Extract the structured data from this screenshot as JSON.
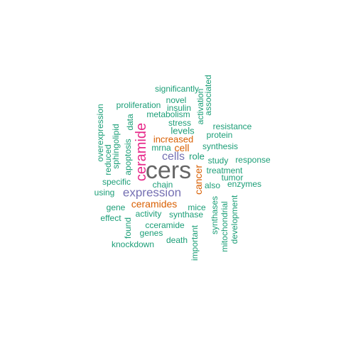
{
  "colors": {
    "green": "#1b9e77",
    "orange": "#d95f02",
    "purple": "#7570b3",
    "pink": "#e7298a",
    "gray": "#666666"
  },
  "words": {
    "cers": "cers",
    "ceramide": "ceramide",
    "expression": "expression",
    "cells": "cells",
    "ceramides": "ceramides",
    "cell": "cell",
    "increased": "increased",
    "cancer": "cancer",
    "levels": "levels",
    "significantly": "significantly",
    "associated": "associated",
    "novel": "novel",
    "insulin": "insulin",
    "activation": "activation",
    "proliferation": "proliferation",
    "metabolism": "metabolism",
    "stress": "stress",
    "resistance": "resistance",
    "protein": "protein",
    "overexpression": "overexpression",
    "sphingolipid": "sphingolipid",
    "data": "data",
    "reduced": "reduced",
    "apoptosis": "apoptosis",
    "mrna": "mrna",
    "synthesis": "synthesis",
    "role": "role",
    "study": "study",
    "response": "response",
    "treatment": "treatment",
    "tumor": "tumor",
    "specific": "specific",
    "chain": "chain",
    "also": "also",
    "enzymes": "enzymes",
    "using": "using",
    "gene": "gene",
    "mice": "mice",
    "synthases": "synthases",
    "effect": "effect",
    "activity": "activity",
    "synthase": "synthase",
    "mitochondrial": "mitochondrial",
    "development": "development",
    "found": "found",
    "cceramide": "cceramide",
    "genes": "genes",
    "important": "important",
    "death": "death",
    "knockdown": "knockdown"
  }
}
